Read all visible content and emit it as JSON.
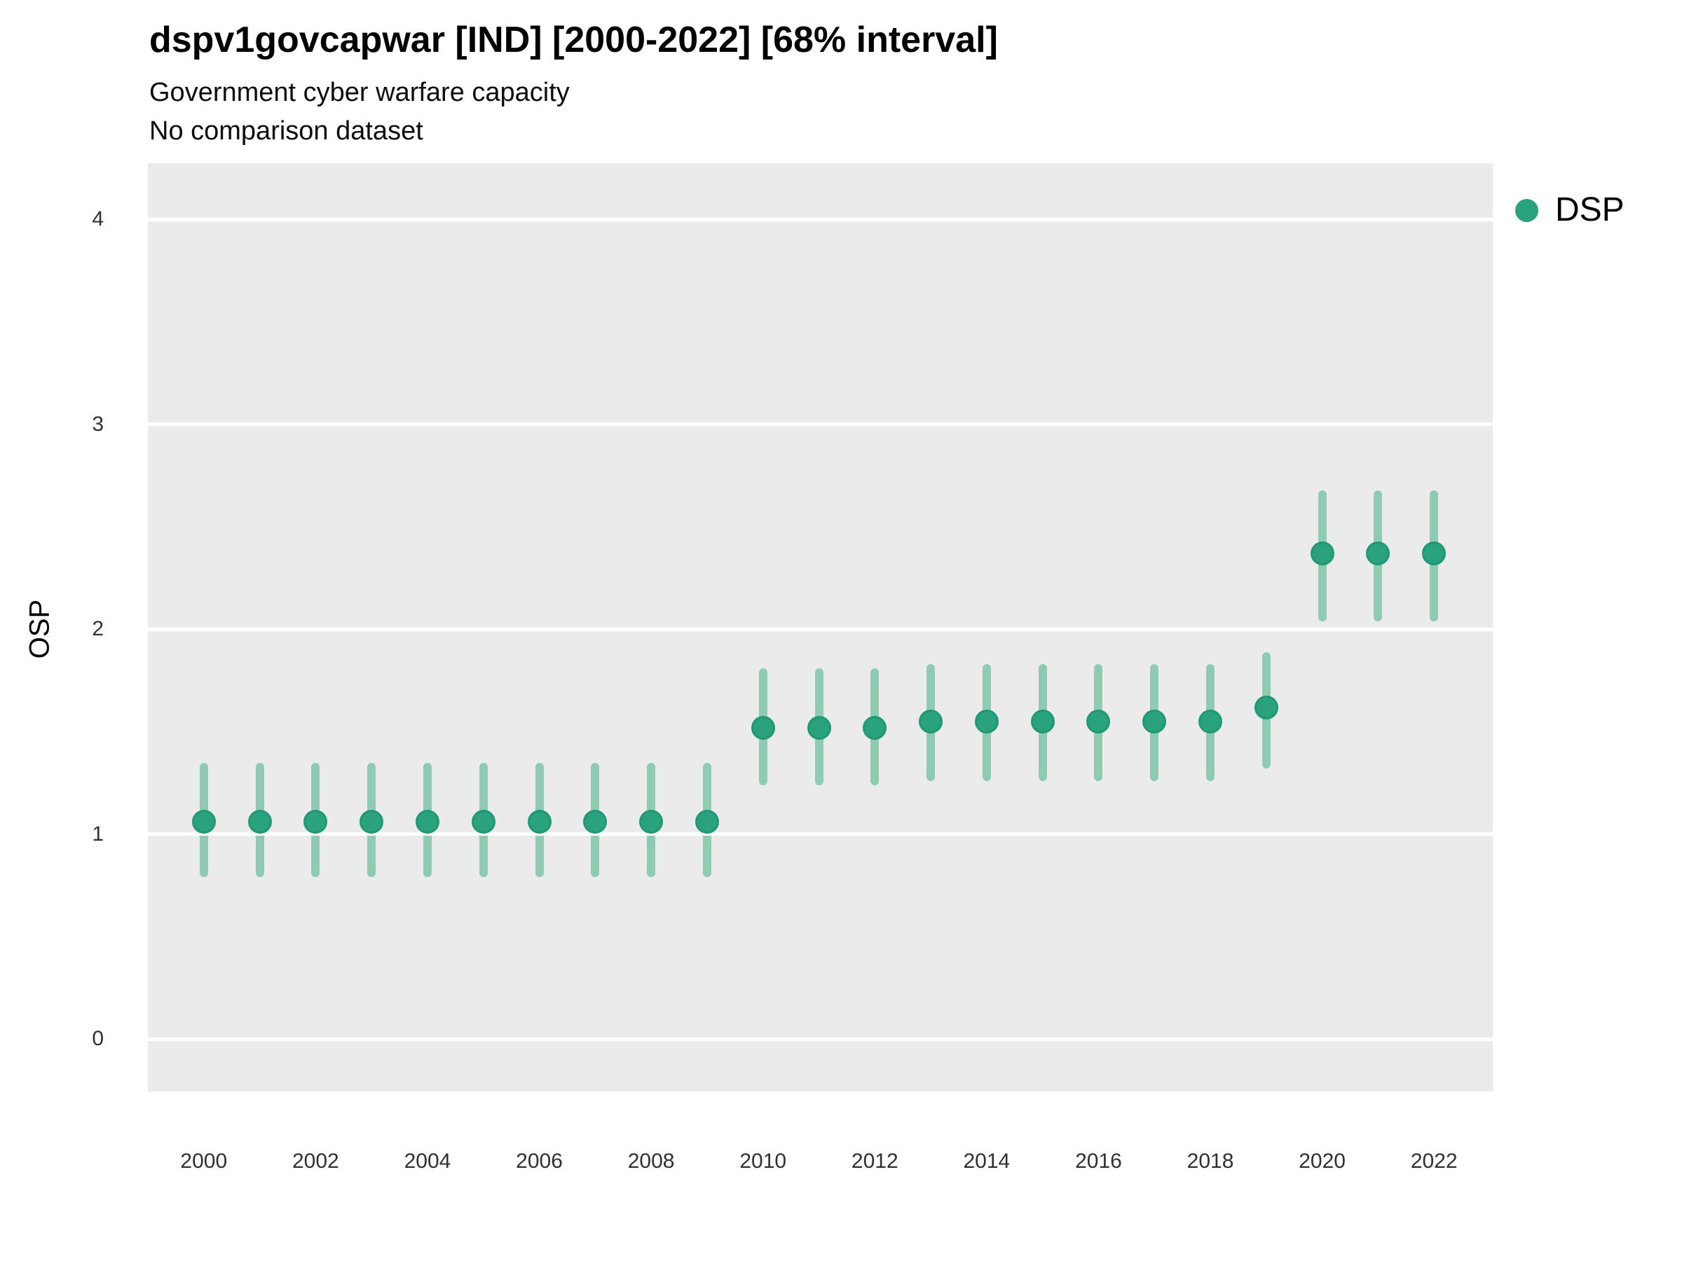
{
  "title": "dspv1govcapwar [IND] [2000-2022] [68% interval]",
  "subtitle": "Government cyber warfare capacity",
  "comparison_note": "No comparison dataset",
  "legend": {
    "label": "DSP",
    "position": "right"
  },
  "colors": {
    "panel_background": "#EBEBEB",
    "gridline": "#FFFFFF",
    "point_fill": "#2AA27E",
    "point_stroke": "#1F9873",
    "interval": "#8FCBB2",
    "tick_text": "#303030",
    "title_text": "#000000"
  },
  "chart_data": {
    "type": "scatter",
    "subtype": "point-interval",
    "title": "dspv1govcapwar [IND] [2000-2022] [68% interval]",
    "subtitle": "Government cyber warfare capacity",
    "note": "No comparison dataset",
    "interval_level": "68%",
    "xlabel": "",
    "ylabel": "OSP",
    "x_ticks": [
      2000,
      2002,
      2004,
      2006,
      2008,
      2010,
      2012,
      2014,
      2016,
      2018,
      2020,
      2022
    ],
    "y_ticks": [
      0,
      1,
      2,
      3,
      4
    ],
    "xlim": [
      1999.0,
      2023.05
    ],
    "ylim": [
      -0.255,
      4.275
    ],
    "grid": "horizontal-major-only",
    "legend_position": "right",
    "series": [
      {
        "name": "DSP",
        "points": [
          {
            "year": 2000,
            "est": 1.06,
            "lo": 0.79,
            "hi": 1.35
          },
          {
            "year": 2001,
            "est": 1.06,
            "lo": 0.79,
            "hi": 1.35
          },
          {
            "year": 2002,
            "est": 1.06,
            "lo": 0.79,
            "hi": 1.35
          },
          {
            "year": 2003,
            "est": 1.06,
            "lo": 0.79,
            "hi": 1.35
          },
          {
            "year": 2004,
            "est": 1.06,
            "lo": 0.79,
            "hi": 1.35
          },
          {
            "year": 2005,
            "est": 1.06,
            "lo": 0.79,
            "hi": 1.35
          },
          {
            "year": 2006,
            "est": 1.06,
            "lo": 0.79,
            "hi": 1.35
          },
          {
            "year": 2007,
            "est": 1.06,
            "lo": 0.79,
            "hi": 1.35
          },
          {
            "year": 2008,
            "est": 1.06,
            "lo": 0.79,
            "hi": 1.35
          },
          {
            "year": 2009,
            "est": 1.06,
            "lo": 0.79,
            "hi": 1.35
          },
          {
            "year": 2010,
            "est": 1.52,
            "lo": 1.24,
            "hi": 1.81
          },
          {
            "year": 2011,
            "est": 1.52,
            "lo": 1.24,
            "hi": 1.81
          },
          {
            "year": 2012,
            "est": 1.52,
            "lo": 1.24,
            "hi": 1.81
          },
          {
            "year": 2013,
            "est": 1.55,
            "lo": 1.26,
            "hi": 1.83
          },
          {
            "year": 2014,
            "est": 1.55,
            "lo": 1.26,
            "hi": 1.83
          },
          {
            "year": 2015,
            "est": 1.55,
            "lo": 1.26,
            "hi": 1.83
          },
          {
            "year": 2016,
            "est": 1.55,
            "lo": 1.26,
            "hi": 1.83
          },
          {
            "year": 2017,
            "est": 1.55,
            "lo": 1.26,
            "hi": 1.83
          },
          {
            "year": 2018,
            "est": 1.55,
            "lo": 1.26,
            "hi": 1.83
          },
          {
            "year": 2019,
            "est": 1.62,
            "lo": 1.32,
            "hi": 1.89
          },
          {
            "year": 2020,
            "est": 2.37,
            "lo": 2.04,
            "hi": 2.68
          },
          {
            "year": 2021,
            "est": 2.37,
            "lo": 2.04,
            "hi": 2.68
          },
          {
            "year": 2022,
            "est": 2.37,
            "lo": 2.04,
            "hi": 2.68
          }
        ]
      }
    ]
  }
}
